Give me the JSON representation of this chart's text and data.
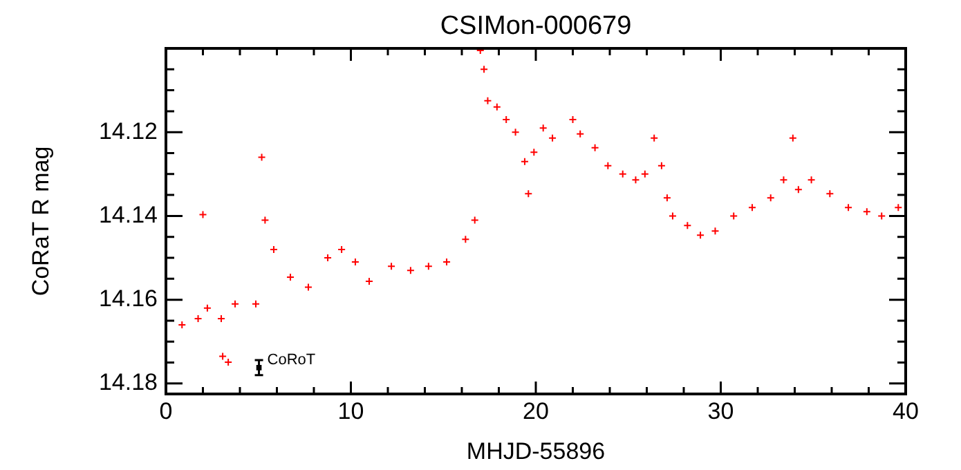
{
  "chart_data": {
    "type": "scatter",
    "title": "CSIMon-000679",
    "xlabel": "MHJD-55896",
    "ylabel": "CoRaT R mag",
    "xlim": [
      0,
      40
    ],
    "xticks": [
      0,
      {
        "value": 2,
        "label": null
      },
      {
        "value": 4,
        "label": null
      },
      {
        "value": 6,
        "label": null
      },
      {
        "value": 8,
        "label": null
      },
      10,
      {
        "value": 12,
        "label": null
      },
      {
        "value": 14,
        "label": null
      },
      {
        "value": 16,
        "label": null
      },
      {
        "value": 18,
        "label": null
      },
      20,
      {
        "value": 22,
        "label": null
      },
      {
        "value": 24,
        "label": null
      },
      {
        "value": 26,
        "label": null
      },
      {
        "value": 28,
        "label": null
      },
      30,
      {
        "value": 32,
        "label": null
      },
      {
        "value": 34,
        "label": null
      },
      {
        "value": 36,
        "label": null
      },
      {
        "value": 38,
        "label": null
      },
      40
    ],
    "ylim": [
      14.1825,
      14.1
    ],
    "yticks": [
      {
        "value": 14.105,
        "label": null
      },
      {
        "value": 14.11,
        "label": null
      },
      {
        "value": 14.115,
        "label": null
      },
      14.12,
      {
        "value": 14.125,
        "label": null
      },
      {
        "value": 14.13,
        "label": null
      },
      {
        "value": 14.135,
        "label": null
      },
      14.14,
      {
        "value": 14.145,
        "label": null
      },
      {
        "value": 14.15,
        "label": null
      },
      {
        "value": 14.155,
        "label": null
      },
      14.16,
      {
        "value": 14.165,
        "label": null
      },
      {
        "value": 14.17,
        "label": null
      },
      {
        "value": 14.175,
        "label": null
      },
      14.18
    ],
    "grid": false,
    "legend": false,
    "series": [
      {
        "color": "#ff0000",
        "marker": "cross",
        "x": [
          0.87,
          1.74,
          2.0,
          2.24,
          2.99,
          3.07,
          3.37,
          3.74,
          4.86,
          5.18,
          5.36,
          5.83,
          6.73,
          7.7,
          8.75,
          9.5,
          10.24,
          10.99,
          12.19,
          13.23,
          14.2,
          15.18,
          16.2,
          16.7,
          17.0,
          17.2,
          17.4,
          17.9,
          18.4,
          18.9,
          19.4,
          19.6,
          19.9,
          20.4,
          20.9,
          22.0,
          22.4,
          23.2,
          23.9,
          24.7,
          25.4,
          25.9,
          26.4,
          26.8,
          27.1,
          27.4,
          28.2,
          28.9,
          29.7,
          30.7,
          31.7,
          32.7,
          33.4,
          33.9,
          34.2,
          34.9,
          35.9,
          36.9,
          37.9,
          38.7,
          39.6
        ],
        "values": [
          14.166,
          14.1645,
          14.1397,
          14.162,
          14.1645,
          14.1735,
          14.1749,
          14.161,
          14.161,
          14.126,
          14.141,
          14.148,
          14.1546,
          14.157,
          14.15,
          14.148,
          14.151,
          14.1556,
          14.152,
          14.153,
          14.152,
          14.151,
          14.1456,
          14.141,
          14.1005,
          14.105,
          14.1125,
          14.114,
          14.117,
          14.12,
          14.127,
          14.1347,
          14.1248,
          14.119,
          14.1214,
          14.117,
          14.1204,
          14.1237,
          14.128,
          14.13,
          14.1314,
          14.13,
          14.1214,
          14.128,
          14.1357,
          14.14,
          14.1423,
          14.1446,
          14.1436,
          14.14,
          14.138,
          14.1357,
          14.1314,
          14.1214,
          14.1337,
          14.1314,
          14.1347,
          14.138,
          14.139,
          14.14,
          14.138
        ]
      },
      {
        "name": "CoRoT",
        "color": "#000000",
        "marker": "square",
        "x": [
          5.03
        ],
        "values": [
          14.1762
        ],
        "errors": [
          0.0018
        ]
      }
    ]
  }
}
